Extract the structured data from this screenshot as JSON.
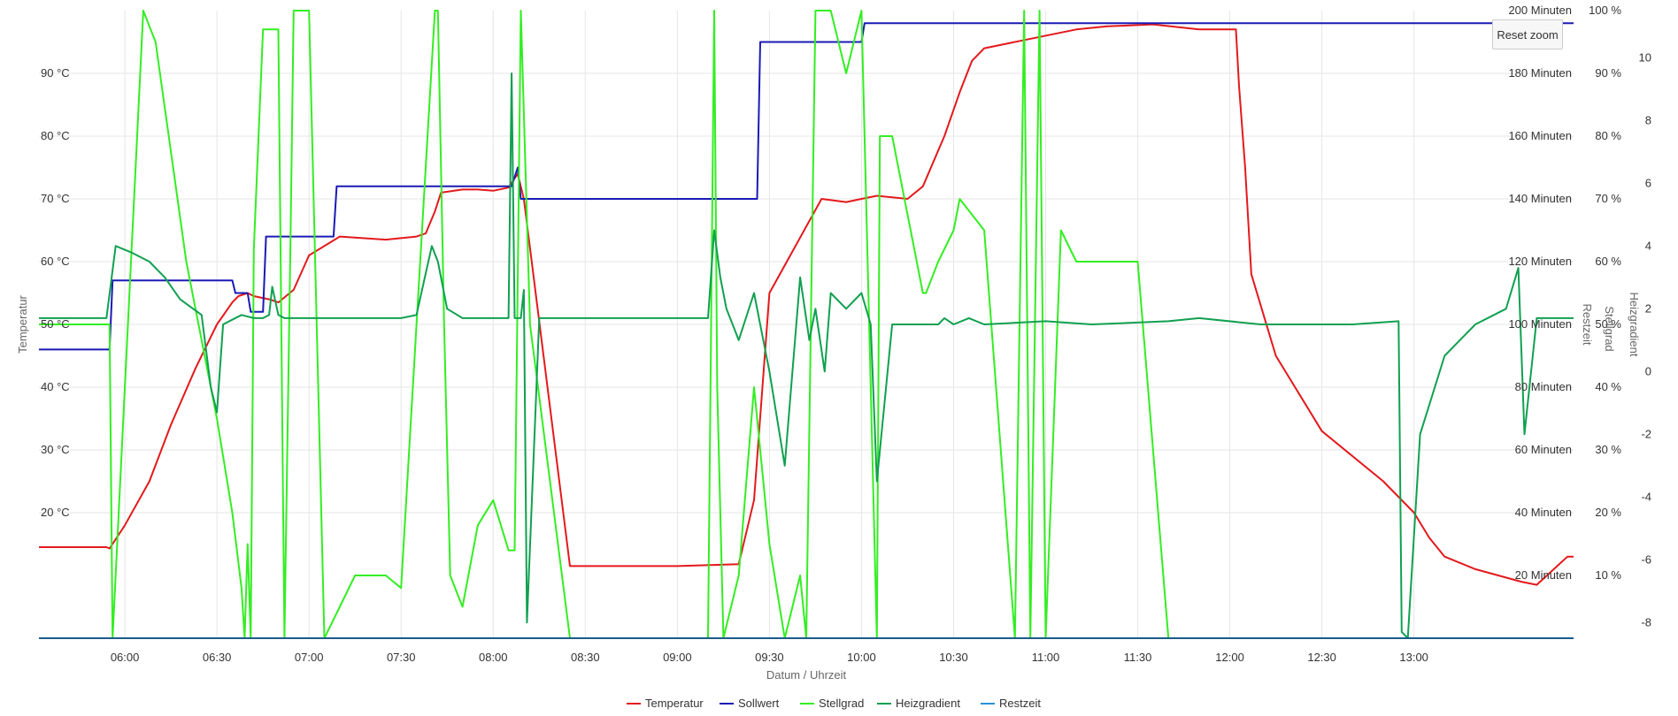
{
  "chart_data": {
    "type": "line",
    "title": "",
    "xlabel": "Datum / Uhrzeit",
    "x_ticks": [
      "06:00",
      "06:30",
      "07:00",
      "07:30",
      "08:00",
      "08:30",
      "09:00",
      "09:30",
      "10:00",
      "10:30",
      "11:00",
      "11:30",
      "12:00",
      "12:30",
      "13:00"
    ],
    "x_range_min": [
      332,
      832
    ],
    "axes": {
      "temperature": {
        "label": "Temperatur",
        "range": [
          0,
          100
        ],
        "ticks": [
          "20 °C",
          "30 °C",
          "40 °C",
          "50 °C",
          "60 °C",
          "70 °C",
          "80 °C",
          "90 °C"
        ],
        "tick_values": [
          20,
          30,
          40,
          50,
          60,
          70,
          80,
          90
        ]
      },
      "restzeit": {
        "label": "Restzeit",
        "range": [
          0,
          200
        ],
        "ticks": [
          "20 Minuten",
          "40 Minuten",
          "60 Minuten",
          "80 Minuten",
          "100 Minuten",
          "120 Minuten",
          "140 Minuten",
          "160 Minuten",
          "180 Minuten",
          "200 Minuten"
        ],
        "tick_values": [
          20,
          40,
          60,
          80,
          100,
          120,
          140,
          160,
          180,
          200
        ]
      },
      "stellgrad": {
        "label": "Stellgrad",
        "range": [
          0,
          100
        ],
        "ticks": [
          "10 %",
          "20 %",
          "30 %",
          "40 %",
          "50 %",
          "60 %",
          "70 %",
          "80 %",
          "90 %",
          "100 %"
        ],
        "tick_values": [
          10,
          20,
          30,
          40,
          50,
          60,
          70,
          80,
          90,
          100
        ]
      },
      "heizgradient": {
        "label": "Heizgradient",
        "range": [
          -8.5,
          11.5
        ],
        "ticks": [
          "-8",
          "-6",
          "-4",
          "-2",
          "0",
          "2",
          "4",
          "6",
          "8",
          "10"
        ],
        "tick_values": [
          -8,
          -6,
          -4,
          -2,
          0,
          2,
          4,
          6,
          8,
          10
        ]
      }
    },
    "grid": true,
    "legend_position": "bottom",
    "series": [
      {
        "name": "Temperatur",
        "color": "#e3191c",
        "axis": "temperature",
        "x": [
          332,
          354,
          355,
          360,
          368,
          375,
          383,
          390,
          395,
          397,
          400,
          402,
          407,
          410,
          415,
          420,
          430,
          445,
          455,
          458,
          461,
          463,
          470,
          475,
          480,
          485,
          488,
          490,
          505,
          515,
          540,
          560,
          565,
          570,
          587,
          595,
          600,
          605,
          615,
          620,
          627,
          632,
          636,
          640,
          670,
          680,
          695,
          710,
          722,
          723,
          725,
          727,
          735,
          750,
          770,
          780,
          785,
          790,
          800,
          815,
          820,
          830,
          832
        ],
        "y": [
          14.5,
          14.5,
          14.3,
          18,
          25,
          34,
          43,
          50,
          53.5,
          54.5,
          55,
          54.5,
          54,
          53.5,
          55.5,
          61,
          64,
          63.5,
          64,
          64.5,
          68,
          71,
          71.5,
          71.5,
          71.3,
          71.8,
          74,
          70,
          11.5,
          11.5,
          11.5,
          11.8,
          22,
          55,
          70,
          69.5,
          70,
          70.5,
          70,
          72,
          80,
          87,
          92,
          94,
          97,
          97.5,
          97.8,
          97,
          97,
          88,
          75,
          58,
          45,
          33,
          25,
          20,
          16,
          13,
          11,
          9,
          8.5,
          13,
          13
        ]
      },
      {
        "name": "Sollwert",
        "color": "#1a1ab5",
        "axis": "temperature",
        "x": [
          332,
          355,
          356,
          395,
          396,
          400,
          401,
          405,
          406,
          428,
          429,
          461,
          462,
          485,
          486,
          488,
          489,
          553,
          554,
          566,
          567,
          600,
          601,
          832
        ],
        "y": [
          46,
          46,
          57,
          57,
          55,
          55,
          52,
          52,
          64,
          64,
          72,
          72,
          72,
          72,
          72,
          75,
          70,
          70,
          70,
          70,
          95,
          95,
          98,
          98
        ]
      },
      {
        "name": "Stellgrad",
        "color": "#33ee22",
        "axis": "stellgrad",
        "x": [
          332,
          355,
          356,
          366,
          370,
          380,
          390,
          395,
          398,
          399,
          400,
          401,
          402,
          405,
          410,
          412,
          414,
          415,
          420,
          425,
          430,
          435,
          445,
          450,
          461,
          462,
          464,
          466,
          470,
          475,
          480,
          485,
          487,
          489,
          492,
          505,
          550,
          552,
          553,
          555,
          560,
          565,
          570,
          575,
          580,
          582,
          585,
          590,
          595,
          600,
          605,
          606,
          610,
          620,
          621,
          625,
          630,
          632,
          640,
          650,
          653,
          655,
          658,
          660,
          665,
          670,
          690,
          700,
          701,
          710,
          720,
          832
        ],
        "y": [
          50,
          50,
          0,
          100,
          95,
          60,
          35,
          20,
          8,
          0,
          15,
          0,
          62,
          97,
          97,
          0,
          65,
          100,
          100,
          0,
          5,
          10,
          10,
          8,
          100,
          100,
          50,
          10,
          5,
          18,
          22,
          14,
          14,
          100,
          50,
          0,
          0,
          100,
          40,
          0,
          10,
          40,
          15,
          0,
          10,
          0,
          100,
          100,
          90,
          100,
          0,
          80,
          80,
          55,
          55,
          60,
          65,
          70,
          65,
          0,
          100,
          0,
          100,
          0,
          65,
          60,
          60,
          0,
          0,
          0,
          0,
          0
        ]
      },
      {
        "name": "Heizgradient",
        "color": "#10a050",
        "axis": "heizgradient",
        "x": [
          332,
          354,
          357,
          362,
          368,
          373,
          378,
          385,
          388,
          390,
          392,
          398,
          402,
          405,
          407,
          408,
          410,
          412,
          415,
          420,
          430,
          440,
          450,
          455,
          460,
          462,
          465,
          470,
          480,
          485,
          486,
          487,
          488,
          489,
          490,
          491,
          495,
          500,
          505,
          540,
          550,
          552,
          554,
          556,
          558,
          560,
          565,
          570,
          575,
          580,
          583,
          585,
          588,
          590,
          595,
          600,
          603,
          605,
          610,
          620,
          625,
          627,
          630,
          635,
          640,
          660,
          675,
          700,
          710,
          730,
          760,
          775,
          776,
          778,
          782,
          790,
          800,
          810,
          814,
          816,
          820,
          832
        ],
        "y": [
          1.7,
          1.7,
          4,
          3.8,
          3.5,
          3,
          2.3,
          1.8,
          -0.5,
          -1.3,
          1.5,
          1.8,
          1.7,
          1.7,
          1.8,
          2.7,
          1.8,
          1.7,
          1.7,
          1.7,
          1.7,
          1.7,
          1.7,
          1.8,
          4,
          3.5,
          2,
          1.7,
          1.7,
          1.7,
          9.5,
          1.7,
          1.7,
          1.7,
          2.6,
          -8,
          1.7,
          1.7,
          1.7,
          1.7,
          1.7,
          4.5,
          3,
          2,
          1.5,
          1,
          2.5,
          0,
          -3,
          3,
          1,
          2,
          0,
          2.5,
          2,
          2.5,
          1.5,
          -3.5,
          1.5,
          1.5,
          1.5,
          1.7,
          1.5,
          1.7,
          1.5,
          1.6,
          1.5,
          1.6,
          1.7,
          1.5,
          1.5,
          1.6,
          -8.3,
          -8.5,
          -2,
          0.5,
          1.5,
          2,
          3.3,
          -2,
          1.7,
          1.7
        ]
      },
      {
        "name": "Restzeit",
        "color": "#2a93d5",
        "axis": "restzeit",
        "x": [
          332,
          832
        ],
        "y": [
          0,
          0
        ]
      }
    ]
  },
  "ui": {
    "reset_zoom_label": "Reset zoom"
  }
}
